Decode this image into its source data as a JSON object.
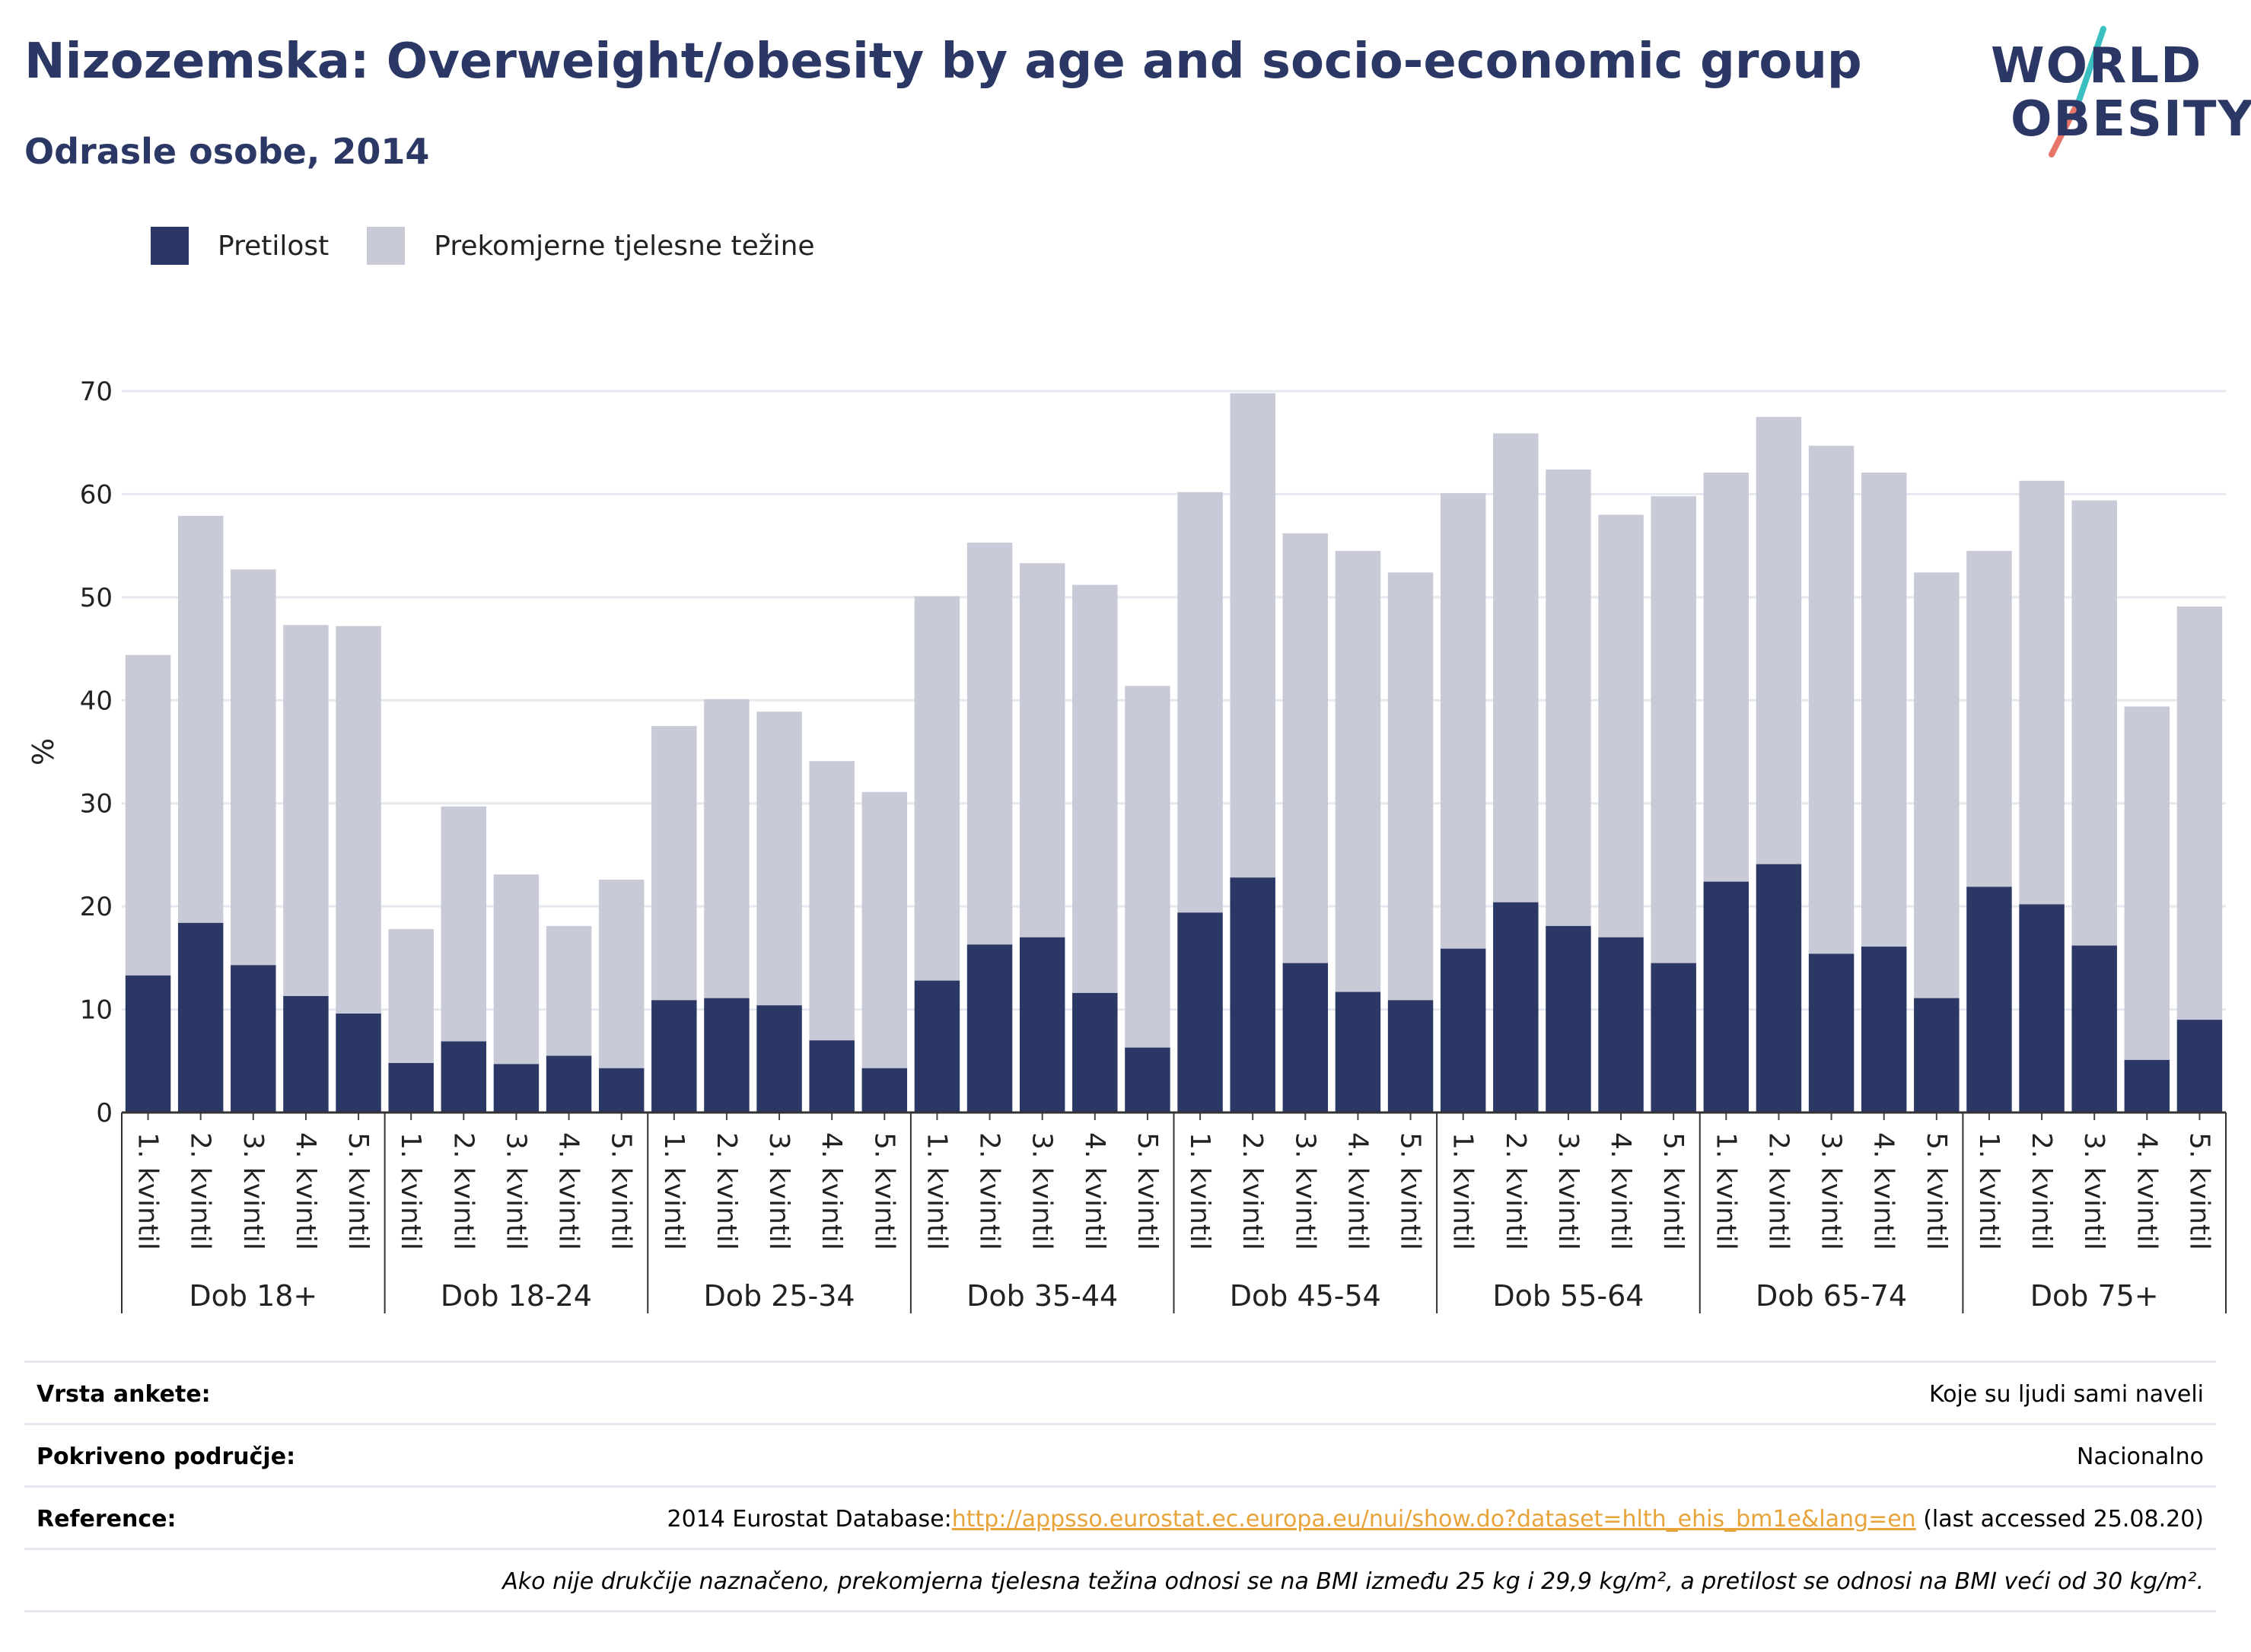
{
  "header": {
    "title": "Nizozemska: Overweight/obesity by age and socio-economic group",
    "subtitle": "Odrasle osobe, 2014"
  },
  "logo": {
    "line1": "WORLD",
    "line2": "OBESITY"
  },
  "colors": {
    "obesity": "#2b3765",
    "overweight": "#c8cad7",
    "grid": "#e6e8ef",
    "title": "#2b3765"
  },
  "legend": {
    "items": [
      "Pretilost",
      "Prekomjerne tjelesne težine"
    ]
  },
  "chart_data": {
    "type": "bar",
    "stacked": true,
    "ylabel": "%",
    "ylim": [
      0,
      70
    ],
    "yticks": [
      0,
      10,
      20,
      30,
      40,
      50,
      60,
      70
    ],
    "grid": true,
    "legend_position": "top-left",
    "groups": [
      "Dob 18+",
      "Dob 18-24",
      "Dob 25-34",
      "Dob 35-44",
      "Dob 45-54",
      "Dob 55-64",
      "Dob 65-74",
      "Dob 75+"
    ],
    "subcategories": [
      "1. kvintil",
      "2. kvintil",
      "3. kvintil",
      "4. kvintil",
      "5. kvintil"
    ],
    "series": [
      {
        "name": "Pretilost",
        "values": [
          [
            13.3,
            18.4,
            14.3,
            11.3,
            9.6
          ],
          [
            4.8,
            6.9,
            4.7,
            5.5,
            4.3
          ],
          [
            10.9,
            11.1,
            10.4,
            7.0,
            4.3
          ],
          [
            12.8,
            16.3,
            17.0,
            11.6,
            6.3
          ],
          [
            19.4,
            22.8,
            14.5,
            11.7,
            10.9
          ],
          [
            15.9,
            20.4,
            18.1,
            17.0,
            14.5
          ],
          [
            22.4,
            24.1,
            15.4,
            16.1,
            11.1
          ],
          [
            21.9,
            20.2,
            16.2,
            5.1,
            9.0
          ]
        ]
      },
      {
        "name": "Prekomjerne tjelesne težine",
        "values": [
          [
            31.1,
            39.5,
            38.4,
            36.0,
            37.6
          ],
          [
            13.0,
            22.8,
            18.4,
            12.6,
            18.3
          ],
          [
            26.6,
            29.0,
            28.5,
            27.1,
            26.8
          ],
          [
            37.3,
            39.0,
            36.3,
            39.6,
            35.1
          ],
          [
            40.8,
            47.0,
            41.7,
            42.8,
            41.5
          ],
          [
            44.2,
            45.5,
            44.3,
            41.0,
            45.3
          ],
          [
            39.7,
            43.4,
            49.3,
            46.0,
            41.3
          ],
          [
            32.6,
            41.1,
            43.2,
            34.3,
            40.1
          ]
        ]
      }
    ]
  },
  "meta": {
    "survey_type_key": "Vrsta ankete:",
    "survey_type_val": "Koje su ljudi sami naveli",
    "coverage_key": "Pokriveno područje:",
    "coverage_val": "Nacionalno",
    "reference_key": "Reference:",
    "reference_prefix": "2014 Eurostat Database:",
    "reference_link": "http://appsso.eurostat.ec.europa.eu/nui/show.do?dataset=hlth_ehis_bm1e&lang=en",
    "reference_suffix": " (last accessed 25.08.20)",
    "note": "Ako nije drukčije naznačeno, prekomjerna tjelesna težina odnosi se na BMI između 25 kg i 29,9 kg/m², a pretilost se odnosi na BMI veći od 30 kg/m²."
  }
}
